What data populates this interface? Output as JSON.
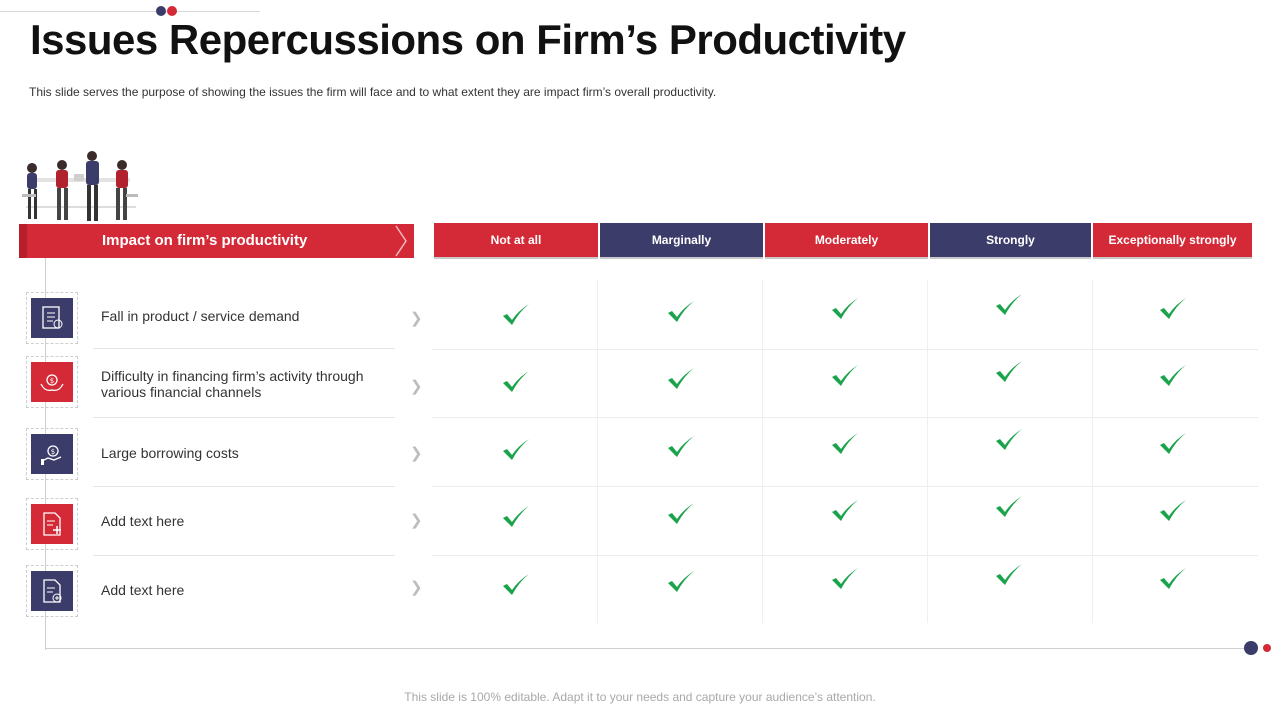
{
  "title": "Issues Repercussions on Firm’s Productivity",
  "subtitle": "This slide serves the purpose of showing the issues the firm will face and to what extent they are impact firm’s overall  productivity.",
  "impact_header": "Impact on firm’s productivity",
  "columns": [
    "Not at all",
    "Marginally",
    "Moderately",
    "Strongly",
    "Exceptionally  strongly"
  ],
  "rows": [
    {
      "label": "Fall in product / service demand",
      "icon": "checklist-document-icon"
    },
    {
      "label": "Difficulty in financing firm’s activity through various financial channels",
      "icon": "hands-money-icon"
    },
    {
      "label": "Large borrowing costs",
      "icon": "hand-coins-icon"
    },
    {
      "label": "Add text here",
      "icon": "document-plus-icon"
    },
    {
      "label": "Add text here",
      "icon": "document-add-icon"
    }
  ],
  "cells": [
    [
      true,
      true,
      true,
      true,
      true
    ],
    [
      true,
      true,
      true,
      true,
      true
    ],
    [
      true,
      true,
      true,
      true,
      true
    ],
    [
      true,
      true,
      true,
      true,
      true
    ],
    [
      true,
      true,
      true,
      true,
      true
    ]
  ],
  "footer": "This slide is 100% editable. Adapt it to your needs and capture your audience’s attention.",
  "colors": {
    "red": "#d42a37",
    "navy": "#3c3c6b",
    "check": "#1aa34a"
  }
}
